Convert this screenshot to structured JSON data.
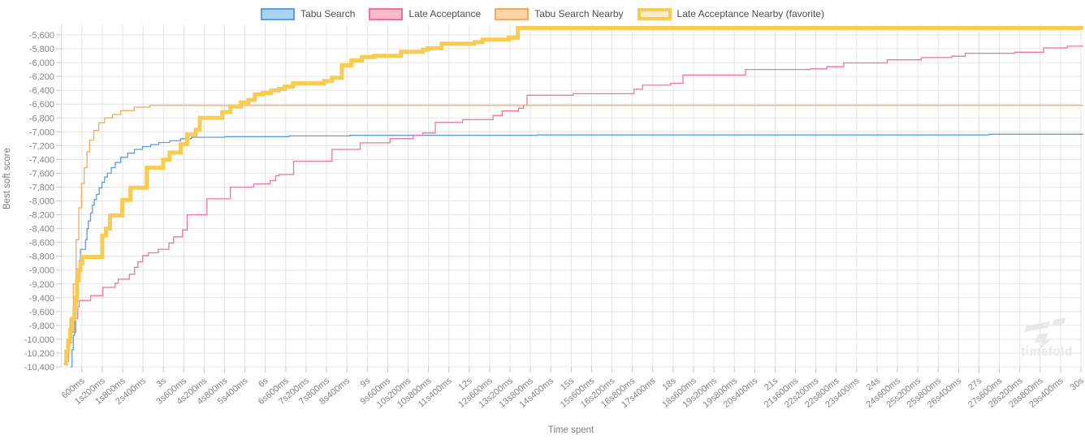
{
  "page": {
    "background": "#ffffff"
  },
  "legend": {
    "position": "top-center",
    "items": [
      {
        "label": "Tabu Search",
        "line_color": "#5C9FDB",
        "fill_color": "#A9D3F2",
        "favorite": false
      },
      {
        "label": "Late Acceptance",
        "line_color": "#F0759B",
        "fill_color": "#F9BACC",
        "favorite": false
      },
      {
        "label": "Tabu Search Nearby",
        "line_color": "#F6A95E",
        "fill_color": "#FBD5A8",
        "favorite": false
      },
      {
        "label": "Late Acceptance Nearby (favorite)",
        "line_color": "#F8CC53",
        "fill_color": "#FBEFC8",
        "favorite": true
      }
    ]
  },
  "chart_data": {
    "type": "line",
    "step_interpolation": "step-after",
    "title": "",
    "xlabel": "Time spent",
    "ylabel": "Best soft score",
    "grid": true,
    "legend_position": "top-center",
    "xlim_ms": [
      0,
      30000
    ],
    "ylim": [
      -10400,
      -5600
    ],
    "y_tick_step": 200,
    "y_ticks": [
      -5600,
      -5800,
      -6000,
      -6200,
      -6400,
      -6600,
      -6800,
      -7000,
      -7200,
      -7400,
      -7600,
      -7800,
      -8000,
      -8200,
      -8400,
      -8600,
      -8800,
      -9000,
      -9200,
      -9400,
      -9600,
      -9800,
      -10000,
      -10200,
      -10400
    ],
    "x_tick_interval_ms": 600,
    "x_tick_labels": [
      "600ms",
      "1s200ms",
      "1s800ms",
      "2s400ms",
      "3s",
      "3s600ms",
      "4s200ms",
      "4s800ms",
      "5s400ms",
      "6s",
      "6s600ms",
      "7s200ms",
      "7s800ms",
      "8s400ms",
      "9s",
      "9s600ms",
      "10s200ms",
      "10s800ms",
      "11s400ms",
      "12s",
      "12s600ms",
      "13s200ms",
      "13s800ms",
      "14s400ms",
      "15s",
      "15s600ms",
      "16s200ms",
      "16s800ms",
      "17s400ms",
      "18s",
      "18s600ms",
      "19s200ms",
      "19s800ms",
      "20s400ms",
      "21s",
      "21s600ms",
      "22s200ms",
      "22s800ms",
      "23s400ms",
      "24s",
      "24s600ms",
      "25s200ms",
      "25s800ms",
      "26s400ms",
      "27s",
      "27s600ms",
      "28s200ms",
      "28s800ms",
      "29s400ms",
      "30s"
    ],
    "series": [
      {
        "name": "Tabu Search",
        "color": "#5C9FDB",
        "line_width": 1.3,
        "points": [
          [
            270,
            -10400
          ],
          [
            310,
            -10150
          ],
          [
            350,
            -9940
          ],
          [
            390,
            -9710
          ],
          [
            430,
            -9480
          ],
          [
            470,
            -9170
          ],
          [
            520,
            -8870
          ],
          [
            560,
            -8700
          ],
          [
            710,
            -8560
          ],
          [
            750,
            -8400
          ],
          [
            790,
            -8290
          ],
          [
            855,
            -8175
          ],
          [
            910,
            -8060
          ],
          [
            965,
            -7980
          ],
          [
            1030,
            -7905
          ],
          [
            1110,
            -7810
          ],
          [
            1190,
            -7730
          ],
          [
            1270,
            -7655
          ],
          [
            1350,
            -7600
          ],
          [
            1465,
            -7520
          ],
          [
            1585,
            -7445
          ],
          [
            1745,
            -7370
          ],
          [
            1945,
            -7310
          ],
          [
            2145,
            -7255
          ],
          [
            2385,
            -7215
          ],
          [
            2625,
            -7185
          ],
          [
            2865,
            -7155
          ],
          [
            3185,
            -7130
          ],
          [
            3505,
            -7100
          ],
          [
            3825,
            -7080
          ],
          [
            4800,
            -7070
          ],
          [
            6700,
            -7060
          ],
          [
            8500,
            -7052
          ],
          [
            14000,
            -7046
          ],
          [
            27300,
            -7035
          ]
        ]
      },
      {
        "name": "Late Acceptance",
        "color": "#F0759B",
        "line_width": 1.3,
        "points": [
          [
            130,
            -10320
          ],
          [
            200,
            -10050
          ],
          [
            300,
            -9900
          ],
          [
            420,
            -9700
          ],
          [
            480,
            -9530
          ],
          [
            520,
            -9440
          ],
          [
            860,
            -9370
          ],
          [
            1220,
            -9250
          ],
          [
            1580,
            -9190
          ],
          [
            1670,
            -9130
          ],
          [
            2000,
            -9060
          ],
          [
            2150,
            -8960
          ],
          [
            2250,
            -8880
          ],
          [
            2390,
            -8790
          ],
          [
            2560,
            -8750
          ],
          [
            2850,
            -8700
          ],
          [
            3160,
            -8610
          ],
          [
            3300,
            -8520
          ],
          [
            3560,
            -8420
          ],
          [
            3700,
            -8200
          ],
          [
            4280,
            -7970
          ],
          [
            4970,
            -7800
          ],
          [
            5660,
            -7753
          ],
          [
            6140,
            -7707
          ],
          [
            6300,
            -7637
          ],
          [
            6400,
            -7618
          ],
          [
            6830,
            -7426
          ],
          [
            7960,
            -7255
          ],
          [
            8790,
            -7160
          ],
          [
            9670,
            -7100
          ],
          [
            10350,
            -7050
          ],
          [
            10630,
            -7018
          ],
          [
            11000,
            -6865
          ],
          [
            11800,
            -6825
          ],
          [
            12700,
            -6765
          ],
          [
            12970,
            -6700
          ],
          [
            13450,
            -6660
          ],
          [
            13600,
            -6620
          ],
          [
            13700,
            -6472
          ],
          [
            15060,
            -6450
          ],
          [
            16850,
            -6385
          ],
          [
            17100,
            -6327
          ],
          [
            17930,
            -6300
          ],
          [
            18290,
            -6180
          ],
          [
            20130,
            -6100
          ],
          [
            22040,
            -6090
          ],
          [
            22520,
            -6060
          ],
          [
            23020,
            -6005
          ],
          [
            24300,
            -5960
          ],
          [
            25300,
            -5928
          ],
          [
            26200,
            -5908
          ],
          [
            26600,
            -5865
          ],
          [
            28050,
            -5850
          ],
          [
            28900,
            -5788
          ],
          [
            29600,
            -5763
          ]
        ]
      },
      {
        "name": "Tabu Search Nearby",
        "color": "#F6A95E",
        "line_width": 1.3,
        "points": [
          [
            60,
            -10350
          ],
          [
            150,
            -10100
          ],
          [
            250,
            -9700
          ],
          [
            350,
            -9200
          ],
          [
            430,
            -8560
          ],
          [
            510,
            -8100
          ],
          [
            590,
            -7750
          ],
          [
            670,
            -7520
          ],
          [
            750,
            -7290
          ],
          [
            830,
            -7120
          ],
          [
            950,
            -6980
          ],
          [
            1100,
            -6870
          ],
          [
            1270,
            -6800
          ],
          [
            1500,
            -6750
          ],
          [
            1750,
            -6695
          ],
          [
            2140,
            -6645
          ],
          [
            2600,
            -6620
          ]
        ]
      },
      {
        "name": "Late Acceptance Nearby (favorite)",
        "color": "#F8CC53",
        "line_width": 5,
        "points": [
          [
            80,
            -10350
          ],
          [
            140,
            -10180
          ],
          [
            200,
            -10020
          ],
          [
            260,
            -9860
          ],
          [
            320,
            -9700
          ],
          [
            380,
            -9550
          ],
          [
            420,
            -9400
          ],
          [
            460,
            -9150
          ],
          [
            510,
            -9000
          ],
          [
            560,
            -8900
          ],
          [
            620,
            -8810
          ],
          [
            1200,
            -8500
          ],
          [
            1310,
            -8400
          ],
          [
            1430,
            -8210
          ],
          [
            1790,
            -7985
          ],
          [
            2030,
            -7810
          ],
          [
            2510,
            -7520
          ],
          [
            2990,
            -7405
          ],
          [
            3180,
            -7300
          ],
          [
            3510,
            -7180
          ],
          [
            3700,
            -7040
          ],
          [
            3950,
            -6970
          ],
          [
            4070,
            -6800
          ],
          [
            4730,
            -6715
          ],
          [
            4970,
            -6635
          ],
          [
            5280,
            -6577
          ],
          [
            5500,
            -6540
          ],
          [
            5690,
            -6460
          ],
          [
            5930,
            -6438
          ],
          [
            6170,
            -6403
          ],
          [
            6400,
            -6380
          ],
          [
            6570,
            -6346
          ],
          [
            6810,
            -6300
          ],
          [
            7730,
            -6265
          ],
          [
            7960,
            -6220
          ],
          [
            8250,
            -6040
          ],
          [
            8530,
            -5968
          ],
          [
            8840,
            -5920
          ],
          [
            9200,
            -5902
          ],
          [
            9990,
            -5843
          ],
          [
            10640,
            -5812
          ],
          [
            10780,
            -5792
          ],
          [
            11190,
            -5728
          ],
          [
            12150,
            -5705
          ],
          [
            12390,
            -5668
          ],
          [
            13160,
            -5640
          ],
          [
            13430,
            -5500
          ]
        ]
      }
    ]
  },
  "watermark": {
    "text": "timefold"
  },
  "axes_style": {
    "grid_color": "#e4e4e4",
    "axis_line_color": "#d9d9d9",
    "tick_mark_color": "#c9c9c9",
    "tick_label_color": "#848484",
    "axis_title_color": "#7d7d7d",
    "legend_text_color": "#4f4f4f",
    "watermark_color": "#e9e9e9"
  }
}
